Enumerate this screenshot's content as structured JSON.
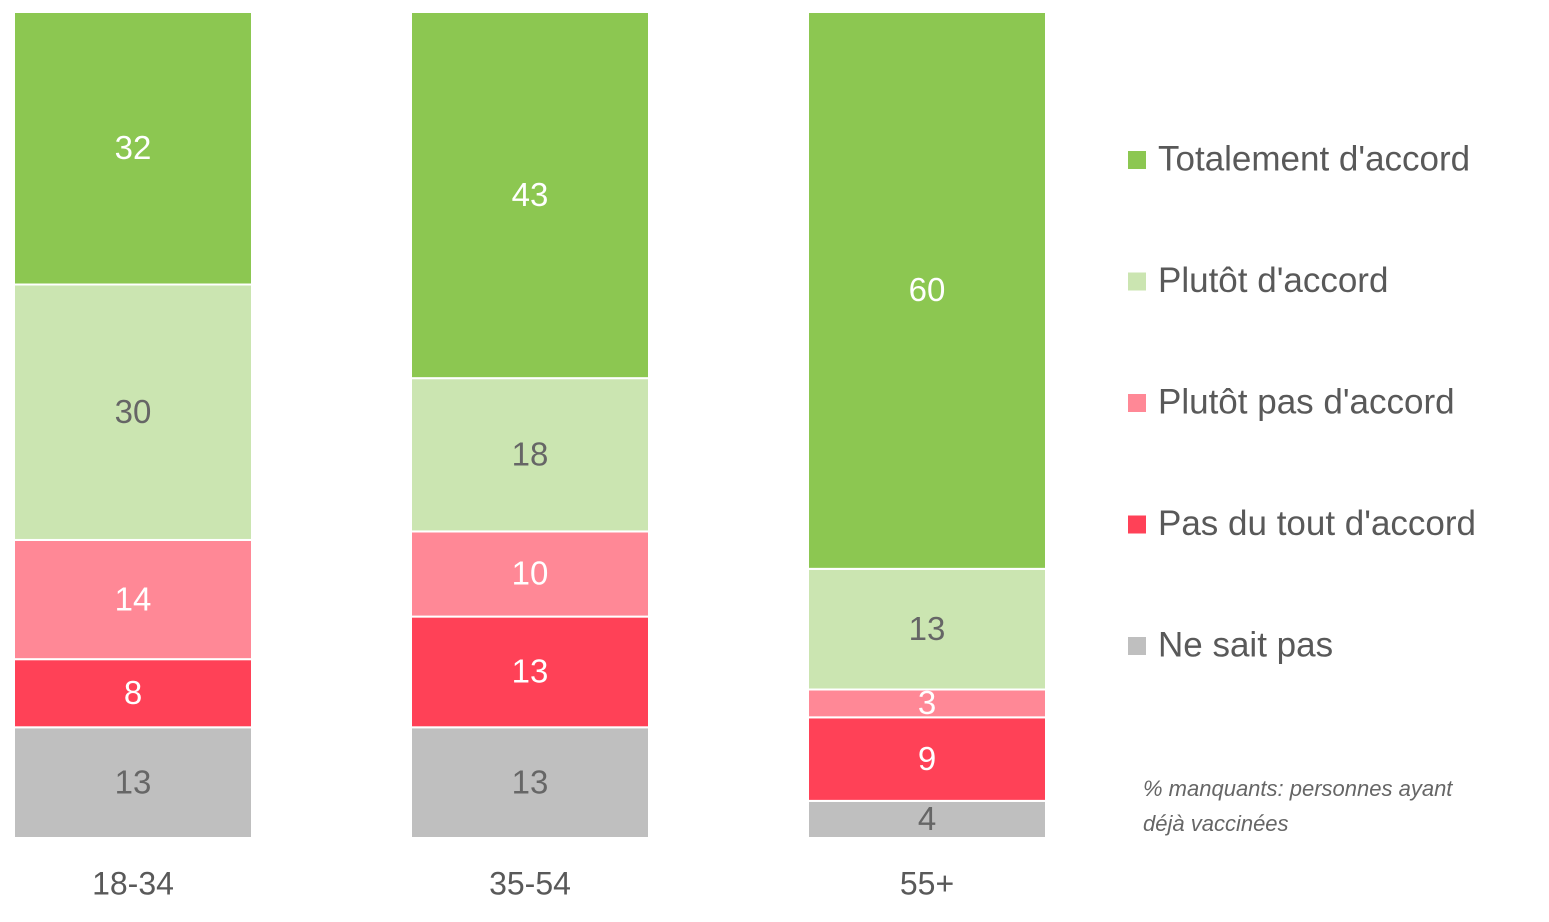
{
  "chart_data": {
    "type": "stacked_bar",
    "stacking": "percent",
    "categories": [
      "18-34",
      "35-54",
      "55+"
    ],
    "series": [
      {
        "name": "Ne sait pas",
        "color": "#bfbfbf",
        "label_color": "#666666",
        "values": [
          13,
          13,
          4
        ]
      },
      {
        "name": "Pas du tout d'accord",
        "color": "#ff4157",
        "label_color": "#ffffff",
        "values": [
          8,
          13,
          9
        ]
      },
      {
        "name": "Plutôt pas d'accord",
        "color": "#ff8896",
        "label_color": "#ffffff",
        "values": [
          14,
          10,
          3
        ]
      },
      {
        "name": "Plutôt d'accord",
        "color": "#cbe5b1",
        "label_color": "#666666",
        "values": [
          30,
          18,
          13
        ]
      },
      {
        "name": "Totalement d'accord",
        "color": "#8cc751",
        "label_color": "#ffffff",
        "values": [
          32,
          43,
          60
        ]
      }
    ],
    "annotation": [
      "% manquants: personnes ayant",
      "déjà vaccinées"
    ]
  }
}
